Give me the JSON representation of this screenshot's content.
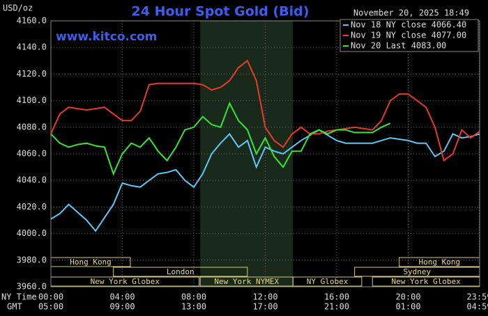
{
  "chart_data": {
    "type": "line",
    "title": "24 Hour Spot Gold (Bid)",
    "subtitle": "November 20, 2025 18:49",
    "unit": "USD/oz",
    "annotation": "www.kitco.com",
    "xlabel": "NY Time",
    "x2label": "GMT",
    "x": [
      0,
      0.5,
      1,
      1.5,
      2,
      2.5,
      3,
      3.5,
      4,
      4.5,
      5,
      5.5,
      6,
      6.5,
      7,
      7.5,
      8,
      8.5,
      9,
      9.5,
      10,
      10.5,
      11,
      11.5,
      12,
      12.5,
      13,
      13.5,
      14,
      14.5,
      15,
      15.5,
      16,
      16.5,
      17,
      17.5,
      18,
      18.5,
      19,
      19.5,
      20,
      20.5,
      21,
      21.5,
      22,
      22.5,
      23,
      23.5,
      24
    ],
    "series": [
      {
        "name": "Nov 18 NY close 4066.40",
        "color": "#5bc8f5",
        "values": [
          4011,
          4015,
          4022,
          4016,
          4010,
          4002,
          4012,
          4022,
          4038,
          4036,
          4035,
          4040,
          4045,
          4046,
          4048,
          4040,
          4035,
          4045,
          4060,
          4068,
          4075,
          4065,
          4070,
          4050,
          4065,
          4062,
          4060,
          4065,
          4070,
          4074,
          4078,
          4074,
          4070,
          4068,
          4068,
          4068,
          4068,
          4070,
          4072,
          4071,
          4070,
          4068,
          4068,
          4058,
          4062,
          4075,
          4072,
          4073,
          4075
        ]
      },
      {
        "name": "Nov 19 NY close 4077.00",
        "color": "#e83a2a",
        "values": [
          4075,
          4090,
          4095,
          4094,
          4093,
          4094,
          4095,
          4090,
          4085,
          4085,
          4092,
          4112,
          4113,
          4113,
          4113,
          4113,
          4113,
          4112,
          4108,
          4110,
          4115,
          4125,
          4130,
          4115,
          4080,
          4070,
          4065,
          4075,
          4080,
          4075,
          4075,
          4077,
          4078,
          4079,
          4080,
          4079,
          4078,
          4085,
          4100,
          4105,
          4105,
          4100,
          4095,
          4080,
          4055,
          4060,
          4078,
          4072,
          4077
        ]
      },
      {
        "name": "Nov 20 Last 4083.00",
        "color": "#33e633",
        "values": [
          4075,
          4068,
          4065,
          4067,
          4068,
          4066,
          4065,
          4045,
          4060,
          4068,
          4065,
          4072,
          4062,
          4055,
          4065,
          4078,
          4080,
          4088,
          4082,
          4080,
          4098,
          4085,
          4078,
          4060,
          4072,
          4058,
          4050,
          4062,
          4062,
          4075,
          4078,
          4075,
          4078,
          4078,
          4076,
          4076,
          4076,
          4080,
          4083,
          null,
          null,
          null,
          null,
          null,
          null,
          null,
          null,
          null,
          null
        ]
      }
    ],
    "xlim": [
      0,
      24
    ],
    "xticks": [
      {
        "value": 0,
        "label": "00:00"
      },
      {
        "value": 4,
        "label": "04:00"
      },
      {
        "value": 8,
        "label": "08:00"
      },
      {
        "value": 12,
        "label": "12:00"
      },
      {
        "value": 16,
        "label": "16:00"
      },
      {
        "value": 20,
        "label": "20:00"
      },
      {
        "value": 23.98,
        "label": "23:59"
      }
    ],
    "gmt_labels": [
      "05:00",
      "09:00",
      "13:00",
      "17:00",
      "21:00",
      "01:00",
      "04:59"
    ],
    "ylim": [
      3960,
      4160
    ],
    "yticks": [
      {
        "value": 3960,
        "label": "3960.0"
      },
      {
        "value": 3980,
        "label": "3980.0"
      },
      {
        "value": 4000,
        "label": "4000.0"
      },
      {
        "value": 4020,
        "label": "4020.0"
      },
      {
        "value": 4040,
        "label": "4040.0"
      },
      {
        "value": 4060,
        "label": "4060.0"
      },
      {
        "value": 4080,
        "label": "4080.0"
      },
      {
        "value": 4100,
        "label": "4100.0"
      },
      {
        "value": 4120,
        "label": "4120.0"
      },
      {
        "value": 4140,
        "label": "4140.0"
      },
      {
        "value": 4160,
        "label": "4160.0"
      }
    ],
    "grid": true,
    "sessions": [
      {
        "name": "Hong Kong",
        "row": 0,
        "start": 0,
        "end": 4.45
      },
      {
        "name": "Hong Kong",
        "row": 0,
        "start": 19.5,
        "end": 24
      },
      {
        "name": "London",
        "row": 1,
        "start": 3.5,
        "end": 11
      },
      {
        "name": "Sydney",
        "row": 1,
        "start": 17,
        "end": 24
      },
      {
        "name": "New York Globex",
        "row": 2,
        "start": 0,
        "end": 8.3
      },
      {
        "name": "New York NYMEX",
        "row": 2,
        "start": 8.36,
        "end": 13.55
      },
      {
        "name": "NY Globex",
        "row": 2,
        "start": 13.55,
        "end": 17.4
      },
      {
        "name": "New York Globex",
        "row": 2,
        "start": 18,
        "end": 24
      }
    ]
  }
}
